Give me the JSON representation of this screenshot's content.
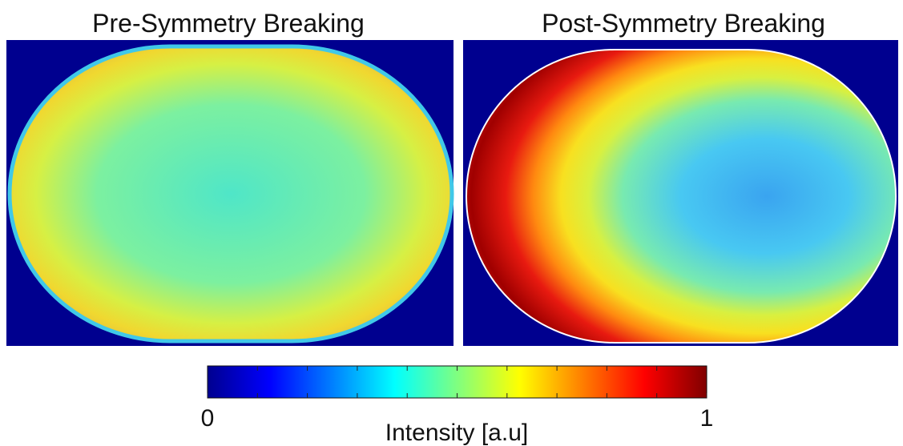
{
  "panels": [
    {
      "title": "Pre-Symmetry Breaking"
    },
    {
      "title": "Post-Symmetry Breaking"
    }
  ],
  "colorbar": {
    "label": "Intensity [a.u]",
    "lim": [
      0,
      1
    ],
    "ticks": [
      0,
      1
    ]
  }
}
